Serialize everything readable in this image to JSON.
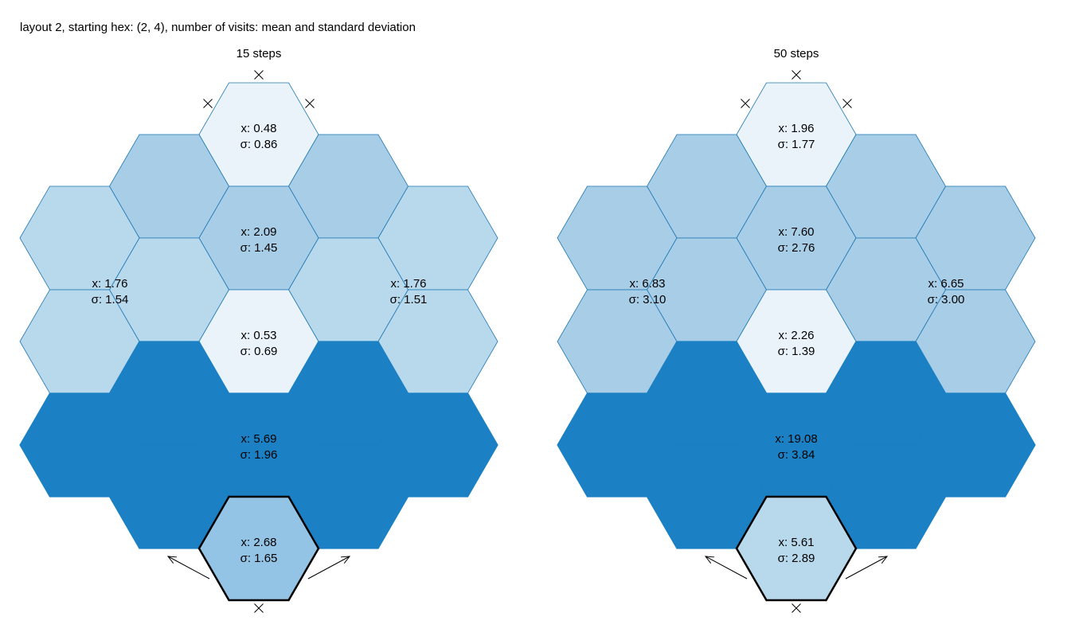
{
  "title": "layout 2, starting hex: (2, 4), number of visits: mean and standard deviation",
  "cell_prefix_mean": "x: ",
  "cell_prefix_sd": "σ: ",
  "colors": {
    "very_light": "#eaf3fa",
    "light": "#b8d8ec",
    "medium_light": "#a8cde6",
    "medium": "#93c3e5",
    "dark": "#1b80c4",
    "border": "#1f78b4",
    "start_border": "#000000",
    "marker": "#000000"
  },
  "panels": [
    {
      "title": "15 steps",
      "regions": [
        {
          "name": "top",
          "mean": "0.48",
          "sd": "0.86",
          "color": "very_light"
        },
        {
          "name": "center",
          "mean": "2.09",
          "sd": "1.45",
          "color": "medium_light"
        },
        {
          "name": "left",
          "mean": "1.76",
          "sd": "1.54",
          "color": "light"
        },
        {
          "name": "right",
          "mean": "1.76",
          "sd": "1.51",
          "color": "light"
        },
        {
          "name": "mid",
          "mean": "0.53",
          "sd": "0.69",
          "color": "very_light"
        },
        {
          "name": "big",
          "mean": "5.69",
          "sd": "1.96",
          "color": "dark"
        },
        {
          "name": "start",
          "mean": "2.68",
          "sd": "1.65",
          "color": "medium"
        }
      ],
      "upper_pair_color": "medium_light"
    },
    {
      "title": "50 steps",
      "regions": [
        {
          "name": "top",
          "mean": "1.96",
          "sd": "1.77",
          "color": "very_light"
        },
        {
          "name": "center",
          "mean": "7.60",
          "sd": "2.76",
          "color": "medium_light"
        },
        {
          "name": "left",
          "mean": "6.83",
          "sd": "3.10",
          "color": "medium_light"
        },
        {
          "name": "right",
          "mean": "6.65",
          "sd": "3.00",
          "color": "medium_light"
        },
        {
          "name": "mid",
          "mean": "2.26",
          "sd": "1.39",
          "color": "very_light"
        },
        {
          "name": "big",
          "mean": "19.08",
          "sd": "3.84",
          "color": "dark"
        },
        {
          "name": "start",
          "mean": "5.61",
          "sd": "2.89",
          "color": "light"
        }
      ],
      "upper_pair_color": "medium_light"
    }
  ]
}
